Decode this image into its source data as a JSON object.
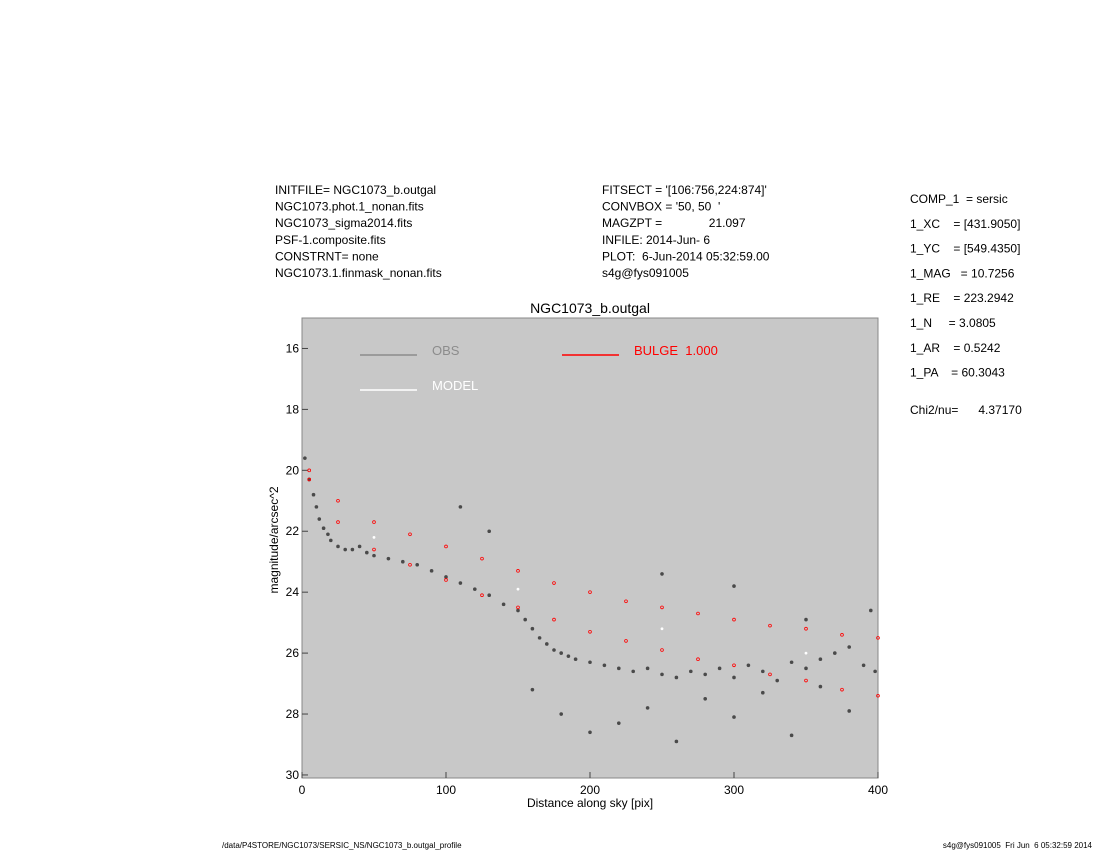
{
  "header": {
    "left": [
      "INITFILE= NGC1073_b.outgal",
      "NGC1073.phot.1_nonan.fits",
      "NGC1073_sigma2014.fits",
      "PSF-1.composite.fits",
      "CONSTRNT= none",
      "NGC1073.1.finmask_nonan.fits"
    ],
    "middle": [
      "FITSECT = '[106:756,224:874]'",
      "CONVBOX = '50, 50  '",
      "MAGZPT =              21.097",
      "INFILE: 2014-Jun- 6",
      "PLOT:  6-Jun-2014 05:32:59.00",
      "s4g@fys091005"
    ],
    "right": [
      "COMP_1  = sersic",
      "1_XC    = [431.9050]",
      "1_YC    = [549.4350]",
      "1_MAG   = 10.7256",
      "1_RE    = 223.2942",
      "1_N     = 3.0805",
      "1_AR    = 0.5242",
      "1_PA    = 60.3043"
    ],
    "chi": "Chi2/nu=      4.37170"
  },
  "footer": {
    "left": "/data/P4STORE/NGC1073/SERSIC_NS/NGC1073_b.outgal_profile",
    "right": "s4g@fys091005  Fri Jun  6 05:32:59 2014"
  },
  "chart_data": {
    "type": "scatter",
    "title": "NGC1073_b.outgal",
    "xlabel": "Distance along sky [pix]",
    "ylabel": "magnitude/arcsec^2",
    "xlim": [
      0,
      400
    ],
    "ylim": [
      30.1,
      15
    ],
    "xticks": [
      0,
      100,
      200,
      300,
      400
    ],
    "yticks": [
      16,
      18,
      20,
      22,
      24,
      26,
      28,
      30
    ],
    "background": "#c8c8c8",
    "series": [
      {
        "name": "OBS",
        "color": "#4a4a4a",
        "legend_color": "#8c8c8c",
        "x": [
          2,
          5,
          8,
          10,
          12,
          15,
          18,
          20,
          25,
          30,
          35,
          40,
          45,
          50,
          60,
          70,
          80,
          90,
          100,
          110,
          120,
          130,
          140,
          150,
          155,
          160,
          165,
          170,
          175,
          180,
          185,
          190,
          200,
          210,
          220,
          230,
          240,
          250,
          260,
          270,
          280,
          290,
          300,
          310,
          320,
          330,
          340,
          350,
          360,
          370,
          380,
          390,
          398,
          160,
          180,
          200,
          220,
          240,
          260,
          280,
          300,
          320,
          340,
          360,
          380,
          110,
          130,
          250,
          300,
          350,
          395
        ],
        "values": [
          19.6,
          20.3,
          20.8,
          21.2,
          21.6,
          21.9,
          22.1,
          22.3,
          22.5,
          22.6,
          22.6,
          22.5,
          22.7,
          22.8,
          22.9,
          23.0,
          23.1,
          23.3,
          23.5,
          23.7,
          23.9,
          24.1,
          24.4,
          24.6,
          24.9,
          25.2,
          25.5,
          25.7,
          25.9,
          26.0,
          26.1,
          26.2,
          26.3,
          26.4,
          26.5,
          26.6,
          26.5,
          26.7,
          26.8,
          26.6,
          26.7,
          26.5,
          26.8,
          26.4,
          26.6,
          26.9,
          26.3,
          26.5,
          26.2,
          26.0,
          25.8,
          26.4,
          26.6,
          27.2,
          28.0,
          28.6,
          28.3,
          27.8,
          28.9,
          27.5,
          28.1,
          27.3,
          28.7,
          27.1,
          27.9,
          21.2,
          22.0,
          23.4,
          23.8,
          24.9,
          24.6
        ]
      },
      {
        "name": "MODEL",
        "color": "#ffffff",
        "legend_color": "#ffffff",
        "x": [
          50,
          150,
          250,
          350
        ],
        "values": [
          22.2,
          23.9,
          25.2,
          26.0
        ]
      },
      {
        "name": "BULGE  1.000",
        "color": "#ff0000",
        "legend_color": "#ff0000",
        "x": [
          5,
          25,
          50,
          75,
          100,
          125,
          150,
          175,
          200,
          225,
          250,
          275,
          300,
          325,
          350,
          375,
          400,
          5,
          25,
          50,
          75,
          100,
          125,
          150,
          175,
          200,
          225,
          250,
          275,
          300,
          325,
          350,
          375,
          400
        ],
        "values": [
          20.0,
          21.0,
          21.7,
          22.1,
          22.5,
          22.9,
          23.3,
          23.7,
          24.0,
          24.3,
          24.5,
          24.7,
          24.9,
          25.1,
          25.2,
          25.4,
          25.5,
          20.3,
          21.7,
          22.6,
          23.1,
          23.6,
          24.1,
          24.5,
          24.9,
          25.3,
          25.6,
          25.9,
          26.2,
          26.4,
          26.7,
          26.9,
          27.2,
          27.4
        ]
      }
    ]
  }
}
